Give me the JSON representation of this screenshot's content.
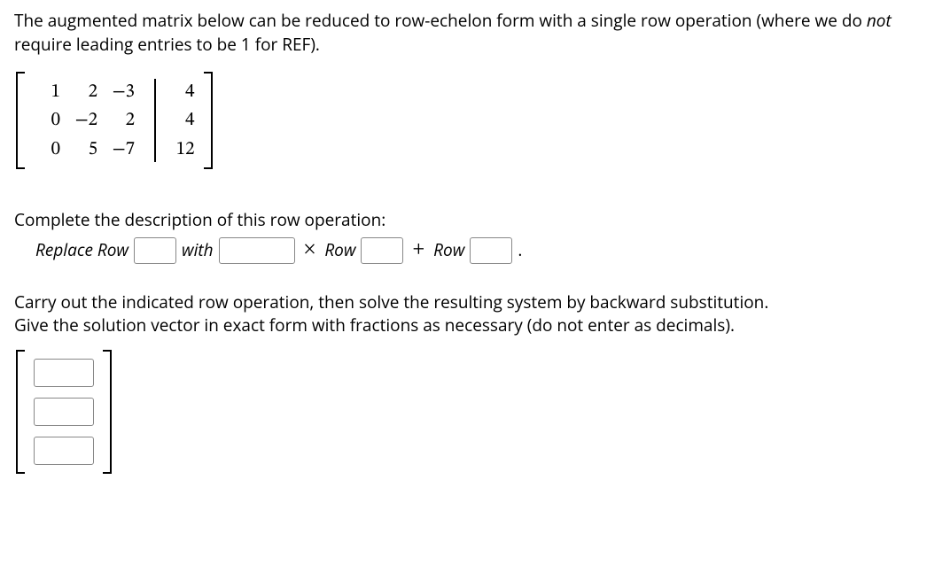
{
  "intro": {
    "part1": "The augmented matrix below can be reduced to row-echelon form with a single row operation (where we do ",
    "not_word": "not",
    "part2": " require leading entries to be 1 for REF)."
  },
  "matrix": {
    "coef": [
      [
        "1",
        "2",
        "−3"
      ],
      [
        "0",
        "−2",
        "2"
      ],
      [
        "0",
        "5",
        "−7"
      ]
    ],
    "aug": [
      "4",
      "4",
      "12"
    ]
  },
  "section2": {
    "prompt": "Complete the description of this row operation:",
    "replace_row": "Replace Row",
    "with": "with",
    "times": "×",
    "row": "Row",
    "plus": "+",
    "period": "."
  },
  "section3": {
    "line1": "Carry out the indicated row operation, then solve the resulting system by backward substitution.",
    "line2": "Give the solution vector in exact form with fractions as necessary (do not enter as decimals)."
  },
  "inputs": {
    "row_target": "",
    "multiplier": "",
    "row_source": "",
    "row_addend": "",
    "vec1": "",
    "vec2": "",
    "vec3": ""
  }
}
